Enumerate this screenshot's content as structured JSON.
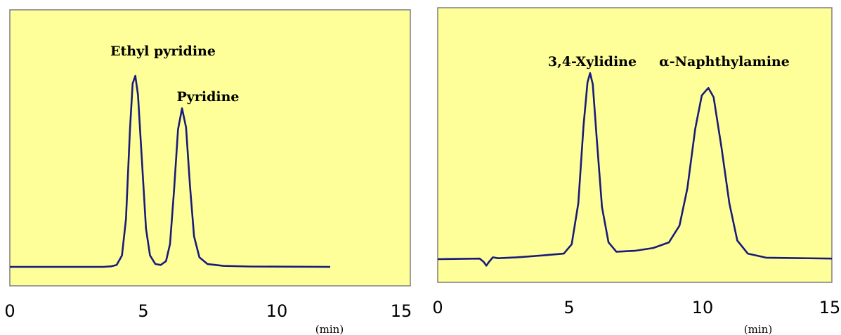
{
  "style": {
    "plot_background": "#ffff99",
    "trace_color": "#1a1a7a",
    "frame_color": "#7f7f7f"
  },
  "chart_data": [
    {
      "type": "line",
      "title": "",
      "xlabel": "",
      "x_unit": "(min)",
      "xlim": [
        0,
        15
      ],
      "xticks": [
        "0",
        "5",
        "10",
        "15"
      ],
      "xtick_values": [
        0,
        5,
        10,
        15
      ],
      "ylim": [
        0,
        1.1
      ],
      "grid": false,
      "series": [
        {
          "points": [
            [
              0.0,
              0.0
            ],
            [
              3.5,
              0.0
            ],
            [
              3.8,
              0.003
            ],
            [
              4.0,
              0.01
            ],
            [
              4.2,
              0.06
            ],
            [
              4.35,
              0.25
            ],
            [
              4.5,
              0.72
            ],
            [
              4.6,
              0.96
            ],
            [
              4.7,
              1.0
            ],
            [
              4.8,
              0.9
            ],
            [
              4.95,
              0.55
            ],
            [
              5.1,
              0.2
            ],
            [
              5.25,
              0.06
            ],
            [
              5.45,
              0.015
            ],
            [
              5.65,
              0.01
            ],
            [
              5.85,
              0.03
            ],
            [
              6.0,
              0.12
            ],
            [
              6.15,
              0.4
            ],
            [
              6.3,
              0.72
            ],
            [
              6.45,
              0.83
            ],
            [
              6.6,
              0.73
            ],
            [
              6.75,
              0.42
            ],
            [
              6.9,
              0.16
            ],
            [
              7.1,
              0.05
            ],
            [
              7.4,
              0.015
            ],
            [
              8.0,
              0.005
            ],
            [
              9.0,
              0.002
            ],
            [
              12.0,
              0.0
            ]
          ]
        }
      ],
      "annotations": [
        {
          "text": "Ethyl pyridine",
          "x": 4.7,
          "y": 1.0
        },
        {
          "text": "Pyridine",
          "x": 6.45,
          "y": 0.83
        }
      ]
    },
    {
      "type": "line",
      "title": "",
      "xlabel": "",
      "x_unit": "(min)",
      "xlim": [
        0,
        15
      ],
      "xticks": [
        "0",
        "5",
        "10",
        "15"
      ],
      "xtick_values": [
        0,
        5,
        10,
        15
      ],
      "ylim": [
        0,
        1.0
      ],
      "grid": false,
      "series": [
        {
          "points": [
            [
              0.0,
              0.0
            ],
            [
              1.6,
              0.003
            ],
            [
              1.75,
              -0.015
            ],
            [
              1.85,
              -0.035
            ],
            [
              1.95,
              -0.015
            ],
            [
              2.1,
              0.01
            ],
            [
              2.3,
              0.005
            ],
            [
              3.0,
              0.01
            ],
            [
              4.0,
              0.02
            ],
            [
              4.8,
              0.03
            ],
            [
              5.1,
              0.08
            ],
            [
              5.35,
              0.3
            ],
            [
              5.55,
              0.72
            ],
            [
              5.7,
              0.95
            ],
            [
              5.8,
              1.0
            ],
            [
              5.9,
              0.94
            ],
            [
              6.05,
              0.65
            ],
            [
              6.25,
              0.28
            ],
            [
              6.5,
              0.09
            ],
            [
              6.8,
              0.04
            ],
            [
              7.5,
              0.045
            ],
            [
              8.2,
              0.06
            ],
            [
              8.8,
              0.09
            ],
            [
              9.2,
              0.18
            ],
            [
              9.5,
              0.38
            ],
            [
              9.8,
              0.7
            ],
            [
              10.05,
              0.88
            ],
            [
              10.3,
              0.92
            ],
            [
              10.5,
              0.87
            ],
            [
              10.8,
              0.6
            ],
            [
              11.1,
              0.3
            ],
            [
              11.4,
              0.1
            ],
            [
              11.8,
              0.03
            ],
            [
              12.5,
              0.008
            ],
            [
              15.0,
              0.003
            ]
          ]
        }
      ],
      "annotations": [
        {
          "text": "3,4-Xylidine",
          "x": 5.8,
          "y": 1.0
        },
        {
          "text": "α-Naphthylamine",
          "x": 10.3,
          "y": 0.92
        }
      ]
    }
  ]
}
